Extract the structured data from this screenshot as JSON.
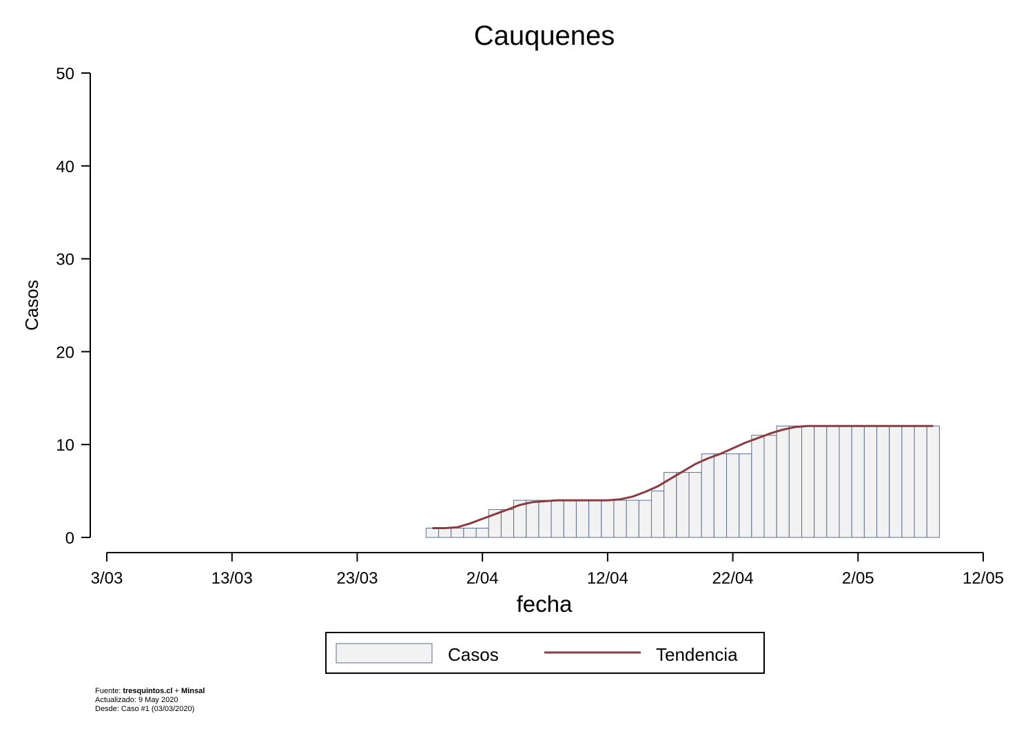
{
  "chart_data": {
    "type": "bar",
    "title": "Cauquenes",
    "xlabel": "fecha",
    "ylabel": "Casos",
    "x_ticks": [
      "3/03",
      "13/03",
      "23/03",
      "2/04",
      "12/04",
      "22/04",
      "2/05",
      "12/05"
    ],
    "y_ticks": [
      "0",
      "10",
      "20",
      "30",
      "40",
      "50"
    ],
    "ylim": [
      0,
      50
    ],
    "xlim": [
      "2020-03-03",
      "2020-05-12"
    ],
    "grid": false,
    "legend_position": "bottom",
    "categories": [
      "2020-03-29",
      "2020-03-30",
      "2020-03-31",
      "2020-04-01",
      "2020-04-02",
      "2020-04-03",
      "2020-04-04",
      "2020-04-05",
      "2020-04-06",
      "2020-04-07",
      "2020-04-08",
      "2020-04-09",
      "2020-04-10",
      "2020-04-11",
      "2020-04-12",
      "2020-04-13",
      "2020-04-14",
      "2020-04-15",
      "2020-04-16",
      "2020-04-17",
      "2020-04-18",
      "2020-04-19",
      "2020-04-20",
      "2020-04-21",
      "2020-04-22",
      "2020-04-23",
      "2020-04-24",
      "2020-04-25",
      "2020-04-26",
      "2020-04-27",
      "2020-04-28",
      "2020-04-29",
      "2020-04-30",
      "2020-05-01",
      "2020-05-02",
      "2020-05-03",
      "2020-05-04",
      "2020-05-05",
      "2020-05-06",
      "2020-05-07",
      "2020-05-08"
    ],
    "series": [
      {
        "name": "Casos",
        "type": "bar",
        "color": "#f2f2f2",
        "edge_color": "#5a6e8c",
        "values": [
          1,
          1,
          1,
          1,
          1,
          3,
          3,
          4,
          4,
          4,
          4,
          4,
          4,
          4,
          4,
          4,
          4,
          4,
          5,
          7,
          7,
          7,
          9,
          9,
          9,
          9,
          11,
          11,
          12,
          12,
          12,
          12,
          12,
          12,
          12,
          12,
          12,
          12,
          12,
          12,
          12
        ]
      },
      {
        "name": "Tendencia",
        "type": "line",
        "color": "#8c3a3f",
        "values": [
          1,
          1,
          1.1,
          1.5,
          2,
          2.5,
          3,
          3.5,
          3.8,
          3.9,
          4,
          4,
          4,
          4,
          4,
          4.1,
          4.4,
          4.9,
          5.5,
          6.3,
          7.1,
          7.9,
          8.5,
          9,
          9.6,
          10.2,
          10.7,
          11.2,
          11.6,
          11.9,
          12,
          12,
          12,
          12,
          12,
          12,
          12,
          12,
          12,
          12,
          12
        ]
      }
    ],
    "legend": [
      "Casos",
      "Tendencia"
    ]
  },
  "footer": {
    "fuente_label": "Fuente: ",
    "fuente_source": "tresquintos.cl",
    "fuente_joiner": " + ",
    "fuente_minsal": "Minsal",
    "actualizado": "Actualizado: 9 May 2020",
    "desde": "Desde: Caso #1  (03/03/2020)"
  }
}
